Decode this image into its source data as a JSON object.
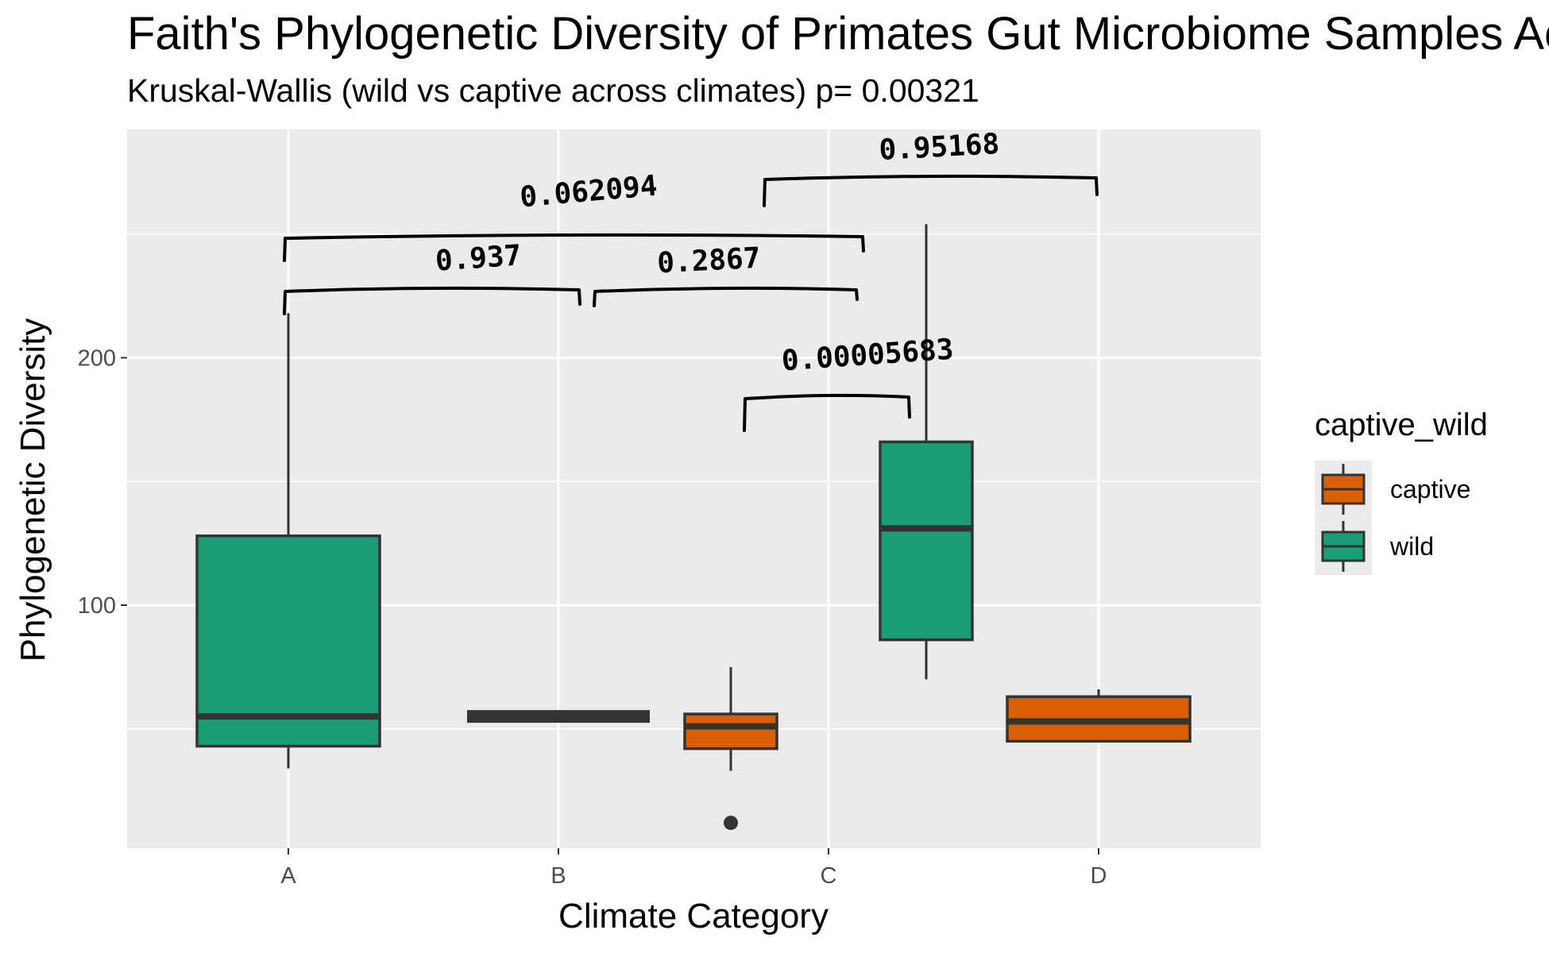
{
  "chart_data": {
    "type": "box",
    "title": "Faith's Phylogenetic Diversity of Primates Gut Microbiome Samples Across Climates",
    "subtitle": "Kruskal-Wallis (wild vs captive across climates) p= 0.00321",
    "xlabel": "Climate Category",
    "ylabel": "Phylogenetic Diversity",
    "categories": [
      "A",
      "B",
      "C",
      "D"
    ],
    "y_ticks": [
      100,
      200
    ],
    "ylim": [
      0,
      290
    ],
    "grid": true,
    "legend": {
      "title": "captive_wild",
      "placement": "right",
      "entries": [
        "captive",
        "wild"
      ]
    },
    "colors": {
      "captive": "#D95F02",
      "wild": "#1B9E77",
      "panel": "#EBEBEB",
      "grid": "#FFFFFF",
      "box_outline": "#333333"
    },
    "series": [
      {
        "name": "captive",
        "boxes": [
          {
            "category": "C",
            "min": 33,
            "q1": 42,
            "median": 51,
            "q3": 56,
            "max": 75,
            "outliers": [
              12
            ]
          },
          {
            "category": "D",
            "min": 45,
            "q1": 45,
            "median": 53,
            "q3": 63,
            "max": 66,
            "outliers": []
          }
        ]
      },
      {
        "name": "wild",
        "boxes": [
          {
            "category": "A",
            "min": 34,
            "q1": 43,
            "median": 55,
            "q3": 128,
            "max": 218,
            "outliers": []
          },
          {
            "category": "B",
            "min": 55,
            "q1": 55,
            "median": 55,
            "q3": 55,
            "max": 55,
            "outliers": []
          },
          {
            "category": "C",
            "min": 70,
            "q1": 86,
            "median": 131,
            "q3": 166,
            "max": 254,
            "outliers": []
          }
        ]
      }
    ],
    "annotations": [
      {
        "label": "0.937",
        "from": "A",
        "to": "B"
      },
      {
        "label": "0.2867",
        "from": "B",
        "to": "C"
      },
      {
        "label": "0.062094",
        "from": "A",
        "to": "C"
      },
      {
        "label": "0.95168",
        "from": "C",
        "to": "D"
      },
      {
        "label": "0.00005683",
        "from": "C-captive",
        "to": "C-wild"
      }
    ]
  }
}
